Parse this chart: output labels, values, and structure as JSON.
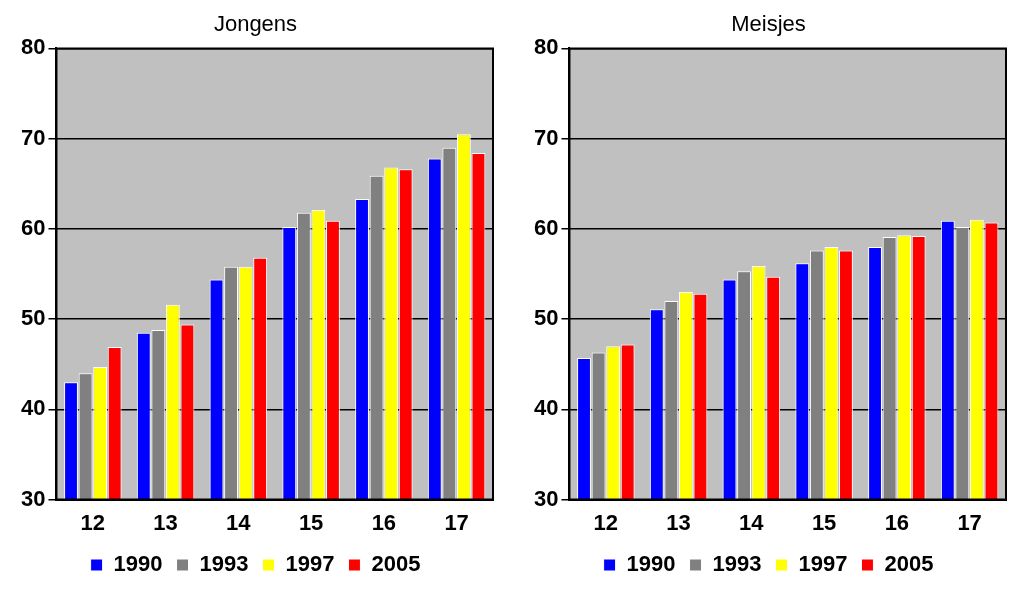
{
  "chart_data": [
    {
      "type": "bar",
      "title": "Jongens",
      "categories": [
        "12",
        "13",
        "14",
        "15",
        "16",
        "17"
      ],
      "ylim": [
        30,
        80
      ],
      "yticks": [
        30,
        40,
        50,
        60,
        70,
        80
      ],
      "grid": "y",
      "legend": "bottom",
      "series": [
        {
          "name": "1990",
          "color": "#0000ff",
          "values": [
            43.0,
            48.5,
            54.4,
            60.2,
            63.3,
            67.8
          ]
        },
        {
          "name": "1993",
          "color": "#808080",
          "values": [
            44.0,
            48.8,
            55.8,
            61.8,
            65.9,
            69.0
          ]
        },
        {
          "name": "1997",
          "color": "#ffff00",
          "values": [
            44.7,
            51.6,
            55.8,
            62.1,
            66.8,
            70.5
          ]
        },
        {
          "name": "2005",
          "color": "#ff0000",
          "values": [
            46.9,
            49.4,
            56.8,
            60.9,
            66.6,
            68.4
          ]
        }
      ]
    },
    {
      "type": "bar",
      "title": "Meisjes",
      "categories": [
        "12",
        "13",
        "14",
        "15",
        "16",
        "17"
      ],
      "ylim": [
        30,
        80
      ],
      "yticks": [
        30,
        40,
        50,
        60,
        70,
        80
      ],
      "grid": "y",
      "legend": "bottom",
      "series": [
        {
          "name": "1990",
          "color": "#0000ff",
          "values": [
            45.7,
            51.1,
            54.4,
            56.2,
            58.0,
            60.9
          ]
        },
        {
          "name": "1993",
          "color": "#808080",
          "values": [
            46.3,
            52.0,
            55.3,
            57.6,
            59.1,
            60.2
          ]
        },
        {
          "name": "1997",
          "color": "#ffff00",
          "values": [
            47.0,
            53.0,
            55.9,
            58.0,
            59.3,
            61.0
          ]
        },
        {
          "name": "2005",
          "color": "#ff0000",
          "values": [
            47.2,
            52.8,
            54.7,
            57.6,
            59.2,
            60.7
          ]
        }
      ]
    }
  ]
}
